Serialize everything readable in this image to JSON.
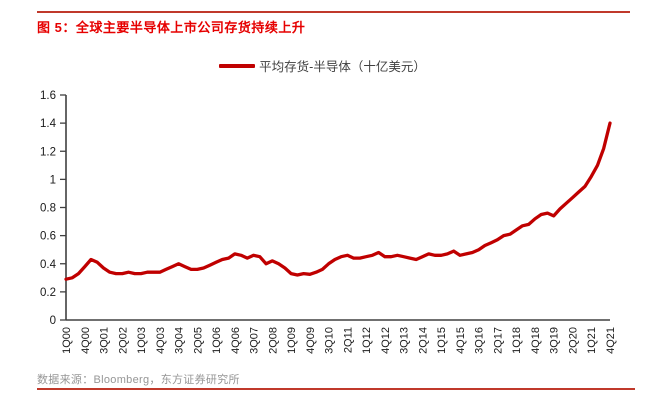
{
  "figure": {
    "title": "图 5：全球主要半导体上市公司存货持续上升",
    "source": "数据来源：Bloomberg，东方证券研究所"
  },
  "legend": {
    "label": "平均存货-半导体（十亿美元）"
  },
  "colors": {
    "line": "#c00000",
    "title": "#e60000",
    "rule": "#c0392b",
    "axis": "#404040",
    "tick_text": "#1a1a1a",
    "source_text": "#969696"
  },
  "chart_data": {
    "type": "line",
    "title": "平均存货-半导体（十亿美元）",
    "xlabel": "",
    "ylabel": "",
    "ylim": [
      0,
      1.6
    ],
    "grid": false,
    "legend_position": "top-center",
    "y_tick_labels": [
      "0",
      "0.2",
      "0.4",
      "0.6",
      "0.8",
      "1",
      "1.2",
      "1.4",
      "1.6"
    ],
    "x_tick_labels": [
      "1Q00",
      "4Q00",
      "3Q01",
      "2Q02",
      "1Q03",
      "4Q03",
      "3Q04",
      "2Q05",
      "1Q06",
      "4Q06",
      "3Q07",
      "2Q08",
      "1Q09",
      "4Q09",
      "3Q10",
      "2Q11",
      "1Q12",
      "4Q12",
      "3Q13",
      "2Q14",
      "1Q15",
      "4Q15",
      "3Q16",
      "2Q17",
      "1Q18",
      "4Q18",
      "3Q19",
      "2Q20",
      "1Q21",
      "4Q21"
    ],
    "x_label_every": 3,
    "series": [
      {
        "name": "平均存货-半导体（十亿美元）",
        "values": [
          0.29,
          0.3,
          0.33,
          0.38,
          0.43,
          0.41,
          0.37,
          0.34,
          0.33,
          0.33,
          0.34,
          0.33,
          0.33,
          0.34,
          0.34,
          0.34,
          0.36,
          0.38,
          0.4,
          0.38,
          0.36,
          0.36,
          0.37,
          0.39,
          0.41,
          0.43,
          0.44,
          0.47,
          0.46,
          0.44,
          0.46,
          0.45,
          0.4,
          0.42,
          0.4,
          0.37,
          0.33,
          0.32,
          0.33,
          0.325,
          0.34,
          0.36,
          0.4,
          0.43,
          0.45,
          0.46,
          0.44,
          0.44,
          0.45,
          0.46,
          0.48,
          0.45,
          0.45,
          0.46,
          0.45,
          0.44,
          0.43,
          0.45,
          0.47,
          0.46,
          0.46,
          0.47,
          0.49,
          0.46,
          0.47,
          0.48,
          0.5,
          0.53,
          0.55,
          0.57,
          0.6,
          0.61,
          0.64,
          0.67,
          0.68,
          0.72,
          0.75,
          0.76,
          0.74,
          0.79,
          0.83,
          0.87,
          0.91,
          0.95,
          1.02,
          1.1,
          1.22,
          1.4
        ]
      }
    ]
  }
}
